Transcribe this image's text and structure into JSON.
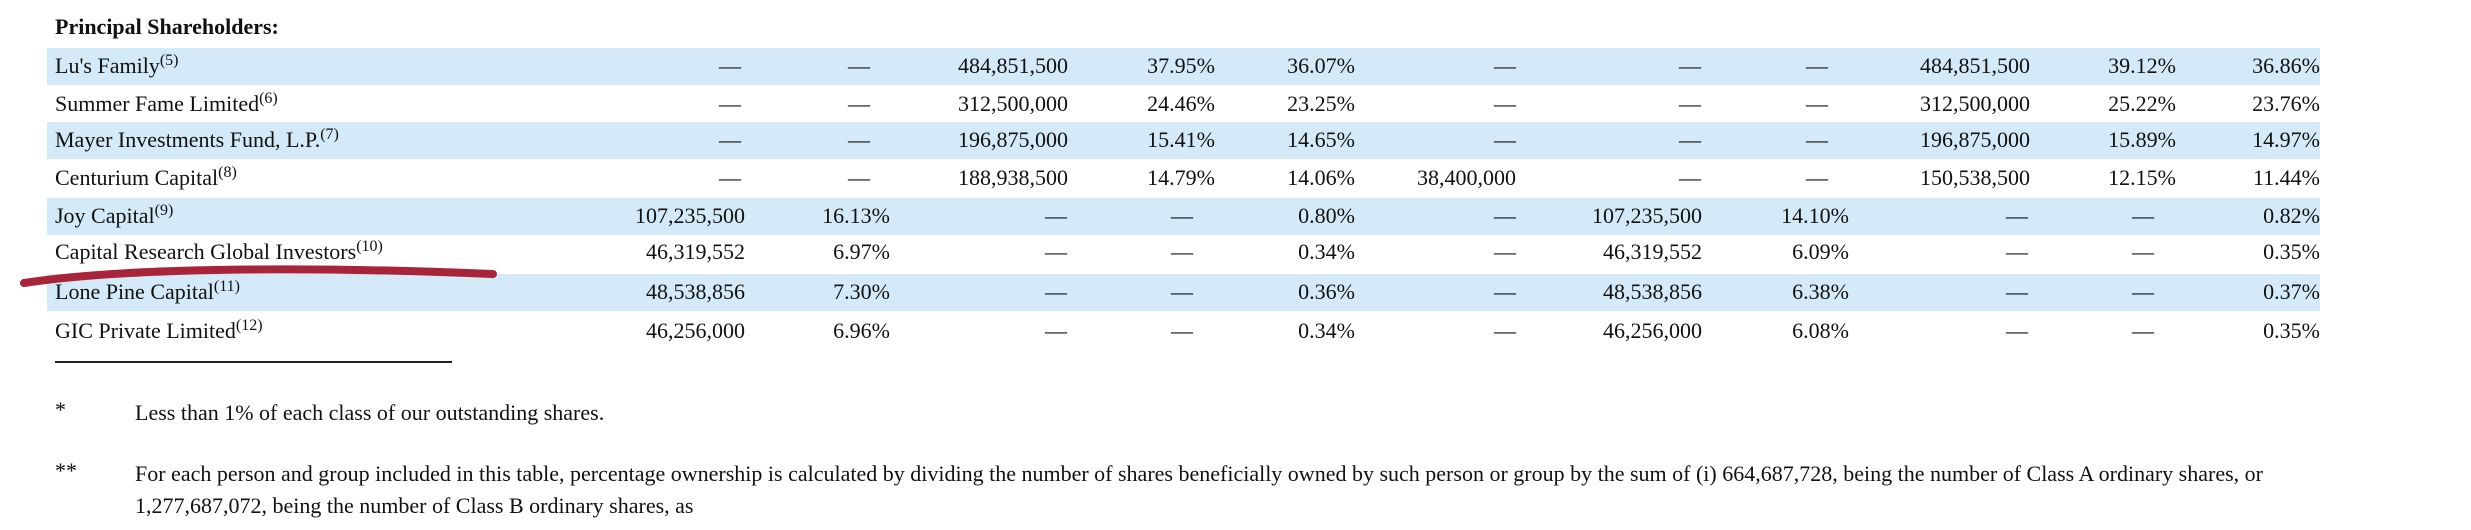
{
  "heading": "Principal Shareholders:",
  "rows": [
    {
      "name": "Lu's Family",
      "note": "(5)",
      "cells": [
        "—",
        "—",
        "484,851,500",
        "37.95%",
        "36.07%",
        "—",
        "—",
        "—",
        "484,851,500",
        "39.12%",
        "36.86%"
      ]
    },
    {
      "name": "Summer Fame Limited",
      "note": "(6)",
      "cells": [
        "—",
        "—",
        "312,500,000",
        "24.46%",
        "23.25%",
        "—",
        "—",
        "—",
        "312,500,000",
        "25.22%",
        "23.76%"
      ]
    },
    {
      "name": "Mayer Investments Fund, L.P.",
      "note": "(7)",
      "cells": [
        "—",
        "—",
        "196,875,000",
        "15.41%",
        "14.65%",
        "—",
        "—",
        "—",
        "196,875,000",
        "15.89%",
        "14.97%"
      ]
    },
    {
      "name": "Centurium Capital",
      "note": "(8)",
      "cells": [
        "—",
        "—",
        "188,938,500",
        "14.79%",
        "14.06%",
        "38,400,000",
        "—",
        "—",
        "150,538,500",
        "12.15%",
        "11.44%"
      ]
    },
    {
      "name": "Joy Capital",
      "note": "(9)",
      "cells": [
        "107,235,500",
        "16.13%",
        "—",
        "—",
        "0.80%",
        "—",
        "107,235,500",
        "14.10%",
        "—",
        "—",
        "0.82%"
      ]
    },
    {
      "name": "Capital Research Global Investors",
      "note": "(10)",
      "cells": [
        "46,319,552",
        "6.97%",
        "—",
        "—",
        "0.34%",
        "—",
        "46,319,552",
        "6.09%",
        "—",
        "—",
        "0.35%"
      ]
    },
    {
      "name": "Lone Pine Capital",
      "note": "(11)",
      "cells": [
        "48,538,856",
        "7.30%",
        "—",
        "—",
        "0.36%",
        "—",
        "48,538,856",
        "6.38%",
        "—",
        "—",
        "0.37%"
      ]
    },
    {
      "name": "GIC Private Limited",
      "note": "(12)",
      "cells": [
        "46,256,000",
        "6.96%",
        "—",
        "—",
        "0.34%",
        "—",
        "46,256,000",
        "6.08%",
        "—",
        "—",
        "0.35%"
      ]
    }
  ],
  "footnotes": [
    {
      "marker": "*",
      "lines": [
        "Less than 1% of each class of our outstanding shares."
      ]
    },
    {
      "marker": "**",
      "lines": [
        "For each person and group included in this table, percentage ownership is calculated by dividing the number of shares beneficially owned by such person or group by the sum of (i) 664,687,728, being the number of Class A ordinary shares, or",
        "1,277,687,072, being the number of Class B ordinary shares, as"
      ]
    }
  ]
}
